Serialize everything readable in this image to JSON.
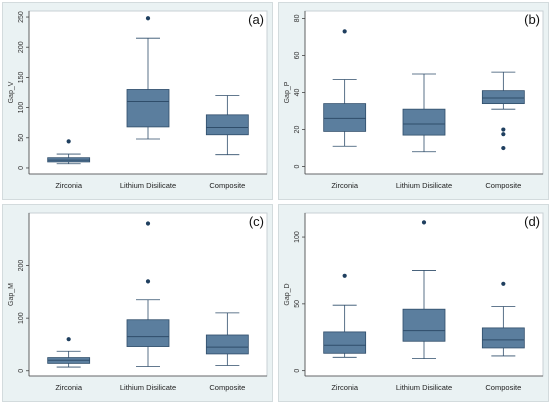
{
  "chart_data": [
    {
      "type": "box",
      "panel_label": "(a)",
      "ylabel": "Gap_V",
      "categories": [
        "Zirconia",
        "Lithium Disilicate",
        "Composite"
      ],
      "yticks": [
        0,
        50,
        100,
        150,
        200,
        250
      ],
      "ylim": [
        -10,
        260
      ],
      "boxes": [
        {
          "whisker_low": 7,
          "q1": 10,
          "median": 13,
          "q3": 17,
          "whisker_high": 23,
          "outliers": [
            44
          ]
        },
        {
          "whisker_low": 48,
          "q1": 68,
          "median": 110,
          "q3": 130,
          "whisker_high": 215,
          "outliers": [
            248
          ]
        },
        {
          "whisker_low": 22,
          "q1": 55,
          "median": 67,
          "q3": 88,
          "whisker_high": 120,
          "outliers": []
        }
      ]
    },
    {
      "type": "box",
      "panel_label": "(b)",
      "ylabel": "Gap_P",
      "categories": [
        "Zirconia",
        "Lithium Disilicate",
        "Composite"
      ],
      "yticks": [
        0,
        20,
        40,
        60,
        80
      ],
      "ylim": [
        -4,
        84
      ],
      "boxes": [
        {
          "whisker_low": 11,
          "q1": 19,
          "median": 26,
          "q3": 34,
          "whisker_high": 47,
          "outliers": [
            73
          ]
        },
        {
          "whisker_low": 8,
          "q1": 17,
          "median": 23,
          "q3": 31,
          "whisker_high": 50,
          "outliers": []
        },
        {
          "whisker_low": 31,
          "q1": 34,
          "median": 37,
          "q3": 41,
          "whisker_high": 51,
          "outliers": [
            20,
            17.5,
            10
          ]
        }
      ]
    },
    {
      "type": "box",
      "panel_label": "(c)",
      "ylabel": "Gap_M",
      "categories": [
        "Zirconia",
        "Lithium Disilicate",
        "Composite"
      ],
      "yticks": [
        0,
        100,
        200
      ],
      "ylim": [
        -10,
        300
      ],
      "boxes": [
        {
          "whisker_low": 7,
          "q1": 14,
          "median": 20,
          "q3": 25,
          "whisker_high": 37,
          "outliers": [
            60
          ]
        },
        {
          "whisker_low": 8,
          "q1": 46,
          "median": 65,
          "q3": 97,
          "whisker_high": 135,
          "outliers": [
            170,
            280
          ]
        },
        {
          "whisker_low": 10,
          "q1": 32,
          "median": 45,
          "q3": 68,
          "whisker_high": 110,
          "outliers": []
        }
      ]
    },
    {
      "type": "box",
      "panel_label": "(d)",
      "ylabel": "Gap_D",
      "categories": [
        "Zirconia",
        "Lithium Disilicate",
        "Composite"
      ],
      "yticks": [
        0,
        50,
        100
      ],
      "ylim": [
        -4,
        118
      ],
      "boxes": [
        {
          "whisker_low": 10,
          "q1": 13,
          "median": 19,
          "q3": 29,
          "whisker_high": 49,
          "outliers": [
            71
          ]
        },
        {
          "whisker_low": 9,
          "q1": 22,
          "median": 30,
          "q3": 46,
          "whisker_high": 75,
          "outliers": [
            111
          ]
        },
        {
          "whisker_low": 11,
          "q1": 17,
          "median": 23,
          "q3": 32,
          "whisker_high": 48,
          "outliers": [
            65
          ]
        }
      ]
    }
  ],
  "colors": {
    "panel_background": "#eaf2f3",
    "plot_background": "#ffffff",
    "box_fill": "#5b7e9e",
    "box_stroke": "#2f4d6a",
    "outlier": "#1f3f5f",
    "axis": "#444444"
  }
}
